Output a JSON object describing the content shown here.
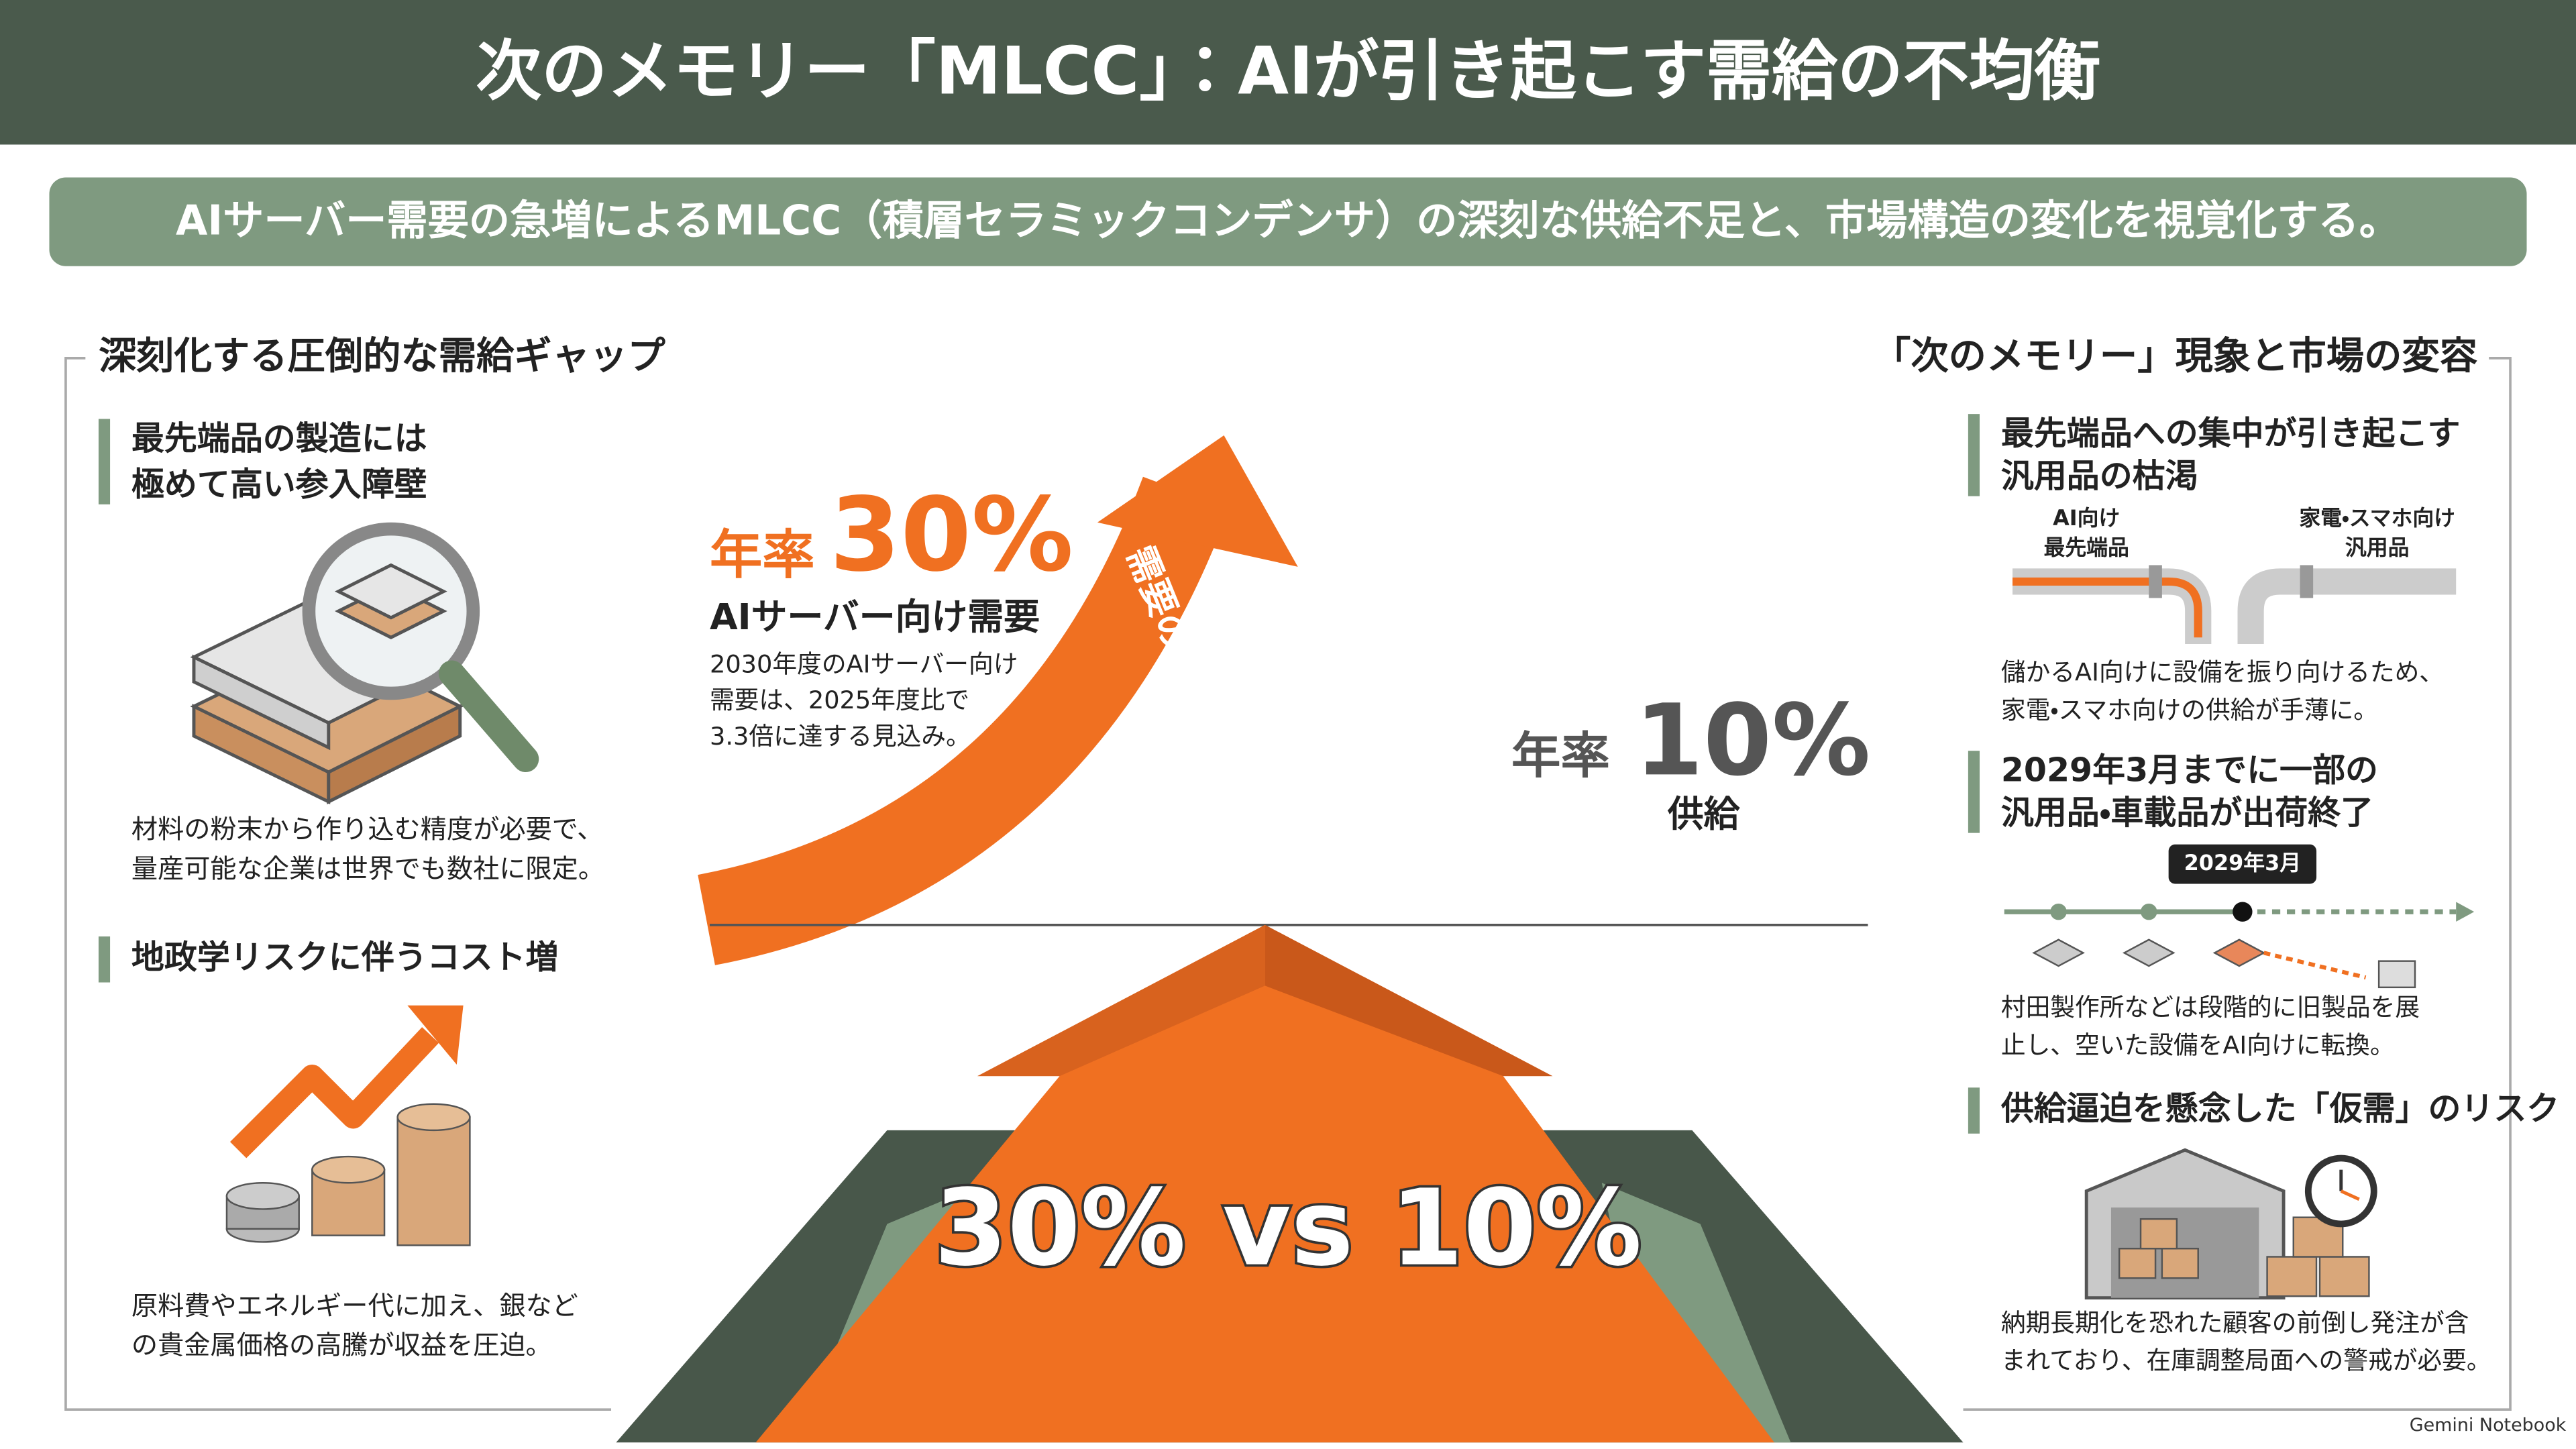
{
  "header": {
    "title": "次のメモリー「MLCC」：AIが引き起こす需給の不均衡",
    "subtitle": "AIサーバー需要の急増によるMLCC（積層セラミックコンデンサ）の深刻な供給不足と、市場構造の変化を視覚化する。"
  },
  "left": {
    "heading": "深刻化する圧倒的な需給ギャップ",
    "items": [
      {
        "title": [
          "最先端品の製造には",
          "極めて高い参入障壁"
        ],
        "text": [
          "材料の粉末から作り込む精度が必要で、",
          "量産可能な企業は世界でも数社に限定。"
        ]
      },
      {
        "title": [
          "地政学リスクに伴うコスト増"
        ],
        "text": [
          "原料費やエネルギー代に加え、銀など",
          "の貴金属価格の高騰が収益を圧迫。"
        ]
      }
    ]
  },
  "center": {
    "demand": {
      "prefix": "年率",
      "rate": "30%",
      "label": "AIサーバー向け需要",
      "note": [
        "2030年度のAIサーバー向け",
        "需要は、2025年度比で",
        "3.3倍に達する見込み。"
      ]
    },
    "arrow_label": "需要の伸び",
    "supply": {
      "prefix": "年率",
      "rate": "10%",
      "label": "供給"
    },
    "comparison": "30% vs 10%"
  },
  "right": {
    "heading": "「次のメモリー」現象と市場の変容",
    "items": [
      {
        "title": [
          "最先端品への集中が引き起こす",
          "汎用品の枯渇"
        ],
        "labels": [
          [
            "AI向け",
            "最先端品"
          ],
          [
            "家電・スマホ向け",
            "汎用品"
          ]
        ],
        "text": [
          "儲かるAI向けに設備を振り向けるため、",
          "家電・スマホ向けの供給が手薄に。"
        ]
      },
      {
        "title": [
          "2029年3月までに一部の",
          "汎用品・車載品が出荷終了"
        ],
        "badge": "2029年3月",
        "text": [
          "村田製作所などは段階的に旧製品を展",
          "止し、空いた設備をAI向けに転換。"
        ]
      },
      {
        "title": [
          "供給逼迫を懸念した「仮需」のリスク"
        ],
        "text": [
          "納期長期化を恐れた顧客の前倒し発注が含",
          "まれており、在庫調整局面への警戒が必要。"
        ]
      }
    ]
  },
  "footer": "Gemini Notebook"
}
